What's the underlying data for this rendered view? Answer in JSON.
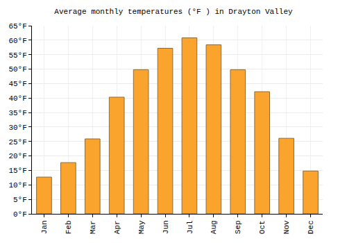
{
  "chart_data": {
    "type": "bar",
    "title": "Average monthly temperatures (°F ) in Drayton Valley",
    "categories": [
      "Jan",
      "Feb",
      "Mar",
      "Apr",
      "May",
      "Jun",
      "Jul",
      "Aug",
      "Sep",
      "Oct",
      "Nov",
      "Dec"
    ],
    "values": [
      12.7,
      17.7,
      25.9,
      40.3,
      49.8,
      57.2,
      60.8,
      58.4,
      49.8,
      42.2,
      26.1,
      14.8
    ],
    "color": "#fba42d",
    "ylim": [
      0,
      65
    ],
    "yticks": [
      {
        "value": 0,
        "label": "0°F"
      },
      {
        "value": 5,
        "label": "5°F"
      },
      {
        "value": 10,
        "label": "10°F"
      },
      {
        "value": 15,
        "label": "15°F"
      },
      {
        "value": 20,
        "label": "20°F"
      },
      {
        "value": 25,
        "label": "25°F"
      },
      {
        "value": 30,
        "label": "30°F"
      },
      {
        "value": 35,
        "label": "35°F"
      },
      {
        "value": 40,
        "label": "40°F"
      },
      {
        "value": 45,
        "label": "45°F"
      },
      {
        "value": 50,
        "label": "50°F"
      },
      {
        "value": 55,
        "label": "55°F"
      },
      {
        "value": 60,
        "label": "60°F"
      },
      {
        "value": 65,
        "label": "65°F"
      }
    ],
    "grid": true
  }
}
